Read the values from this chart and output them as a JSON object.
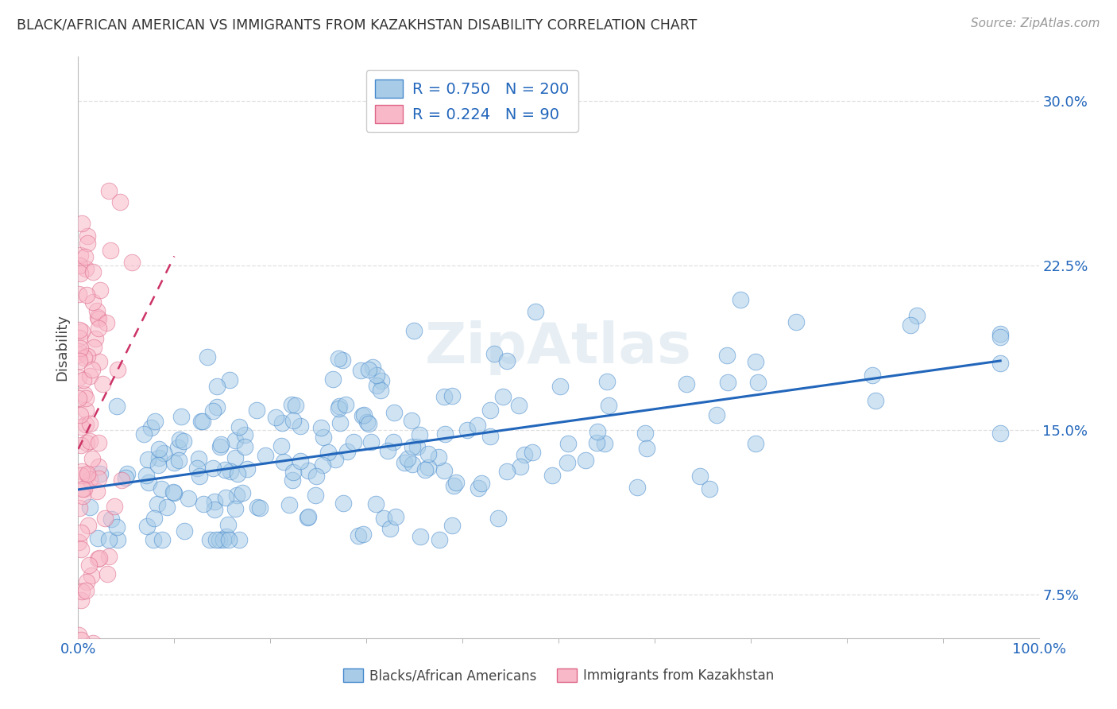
{
  "title": "BLACK/AFRICAN AMERICAN VS IMMIGRANTS FROM KAZAKHSTAN DISABILITY CORRELATION CHART",
  "source": "Source: ZipAtlas.com",
  "ylabel": "Disability",
  "xlim": [
    0,
    100
  ],
  "ylim": [
    5.5,
    32.0
  ],
  "yticks": [
    7.5,
    15.0,
    22.5,
    30.0
  ],
  "xtick_labels": [
    "0.0%",
    "100.0%"
  ],
  "ytick_labels": [
    "7.5%",
    "15.0%",
    "22.5%",
    "30.0%"
  ],
  "blue_color": "#a8cce8",
  "blue_edge_color": "#4488cc",
  "blue_line_color": "#2266bb",
  "pink_color": "#f8b8c8",
  "pink_edge_color": "#dd6688",
  "pink_line_color": "#cc3366",
  "legend_color": "#2266bb",
  "R_blue": 0.75,
  "N_blue": 200,
  "R_pink": 0.224,
  "N_pink": 90,
  "legend_label_blue": "Blacks/African Americans",
  "legend_label_pink": "Immigrants from Kazakhstan",
  "watermark": "ZipAtlas",
  "background_color": "#ffffff",
  "grid_color": "#e0e0e0",
  "grid_style": "--"
}
